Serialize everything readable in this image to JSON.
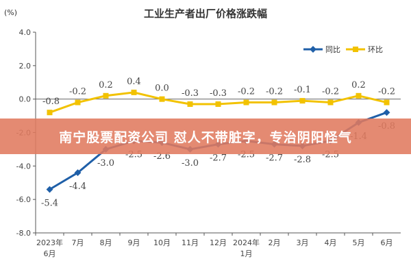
{
  "chart_data": {
    "type": "line",
    "title": "工业生产者出厂价格涨跌幅",
    "unit_label": "(%)",
    "categories": [
      "2023年6月",
      "7月",
      "8月",
      "9月",
      "10月",
      "11月",
      "12月",
      "2024年1月",
      "2月",
      "3月",
      "4月",
      "5月",
      "6月"
    ],
    "series": [
      {
        "name": "同比",
        "color": "#1f5fa8",
        "values": [
          -5.4,
          -4.4,
          -3.0,
          -2.5,
          -2.6,
          -3.0,
          -2.7,
          -2.5,
          -2.7,
          -2.8,
          -2.5,
          -1.4,
          -0.8
        ],
        "labels": [
          "-5.4",
          "-4.4",
          "-3.0",
          "-2.5",
          "-2.6",
          "-3.0",
          "-2.7",
          "-2.5",
          "-2.7",
          "-2.8",
          "-2.5",
          "-1.4",
          "-0.8"
        ]
      },
      {
        "name": "环比",
        "color": "#f2c200",
        "values": [
          -0.8,
          -0.2,
          0.2,
          0.4,
          0.0,
          -0.3,
          -0.3,
          -0.2,
          -0.2,
          -0.1,
          -0.2,
          0.2,
          -0.2
        ],
        "labels": [
          "-0.8",
          "-0.2",
          "0.2",
          "0.4",
          "0.0",
          "-0.3",
          "-0.3",
          "-0.2",
          "-0.2",
          "-0.1",
          "-0.2",
          "0.2",
          "-0.2"
        ]
      }
    ],
    "y_ticks": [
      "4.0",
      "2.0",
      "0.0",
      "-2.0",
      "-4.0",
      "-6.0",
      "-8.0"
    ],
    "ylim": [
      -8,
      4
    ],
    "grid": false,
    "legend": "top-right"
  },
  "overlay": {
    "text": "南宁股票配资公司 怼人不带脏字，专治阴阳怪气",
    "color": "#e07a5f"
  }
}
